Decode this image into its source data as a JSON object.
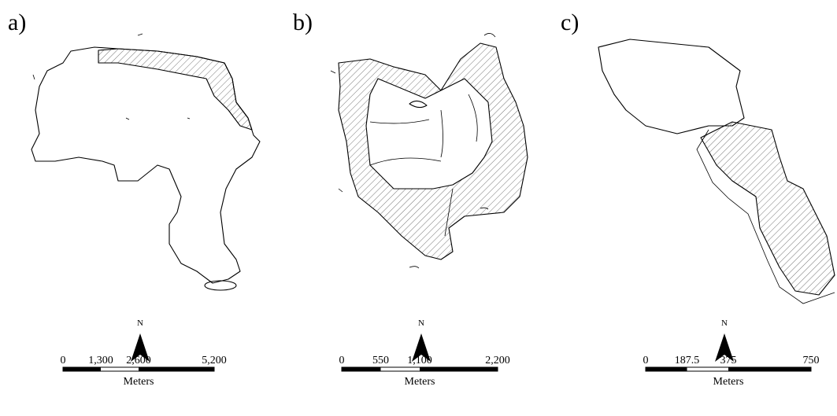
{
  "panels": [
    {
      "label": "a)",
      "north": "N",
      "scale": {
        "ticks": [
          "0",
          "1,300",
          "2,600",
          "5,200"
        ],
        "unit": "Meters"
      }
    },
    {
      "label": "b)",
      "north": "N",
      "scale": {
        "ticks": [
          "0",
          "550",
          "1,100",
          "2,200"
        ],
        "unit": "Meters"
      }
    },
    {
      "label": "c)",
      "north": "N",
      "scale": {
        "ticks": [
          "0",
          "187.5",
          "375",
          "750"
        ],
        "unit": "Meters"
      }
    }
  ]
}
